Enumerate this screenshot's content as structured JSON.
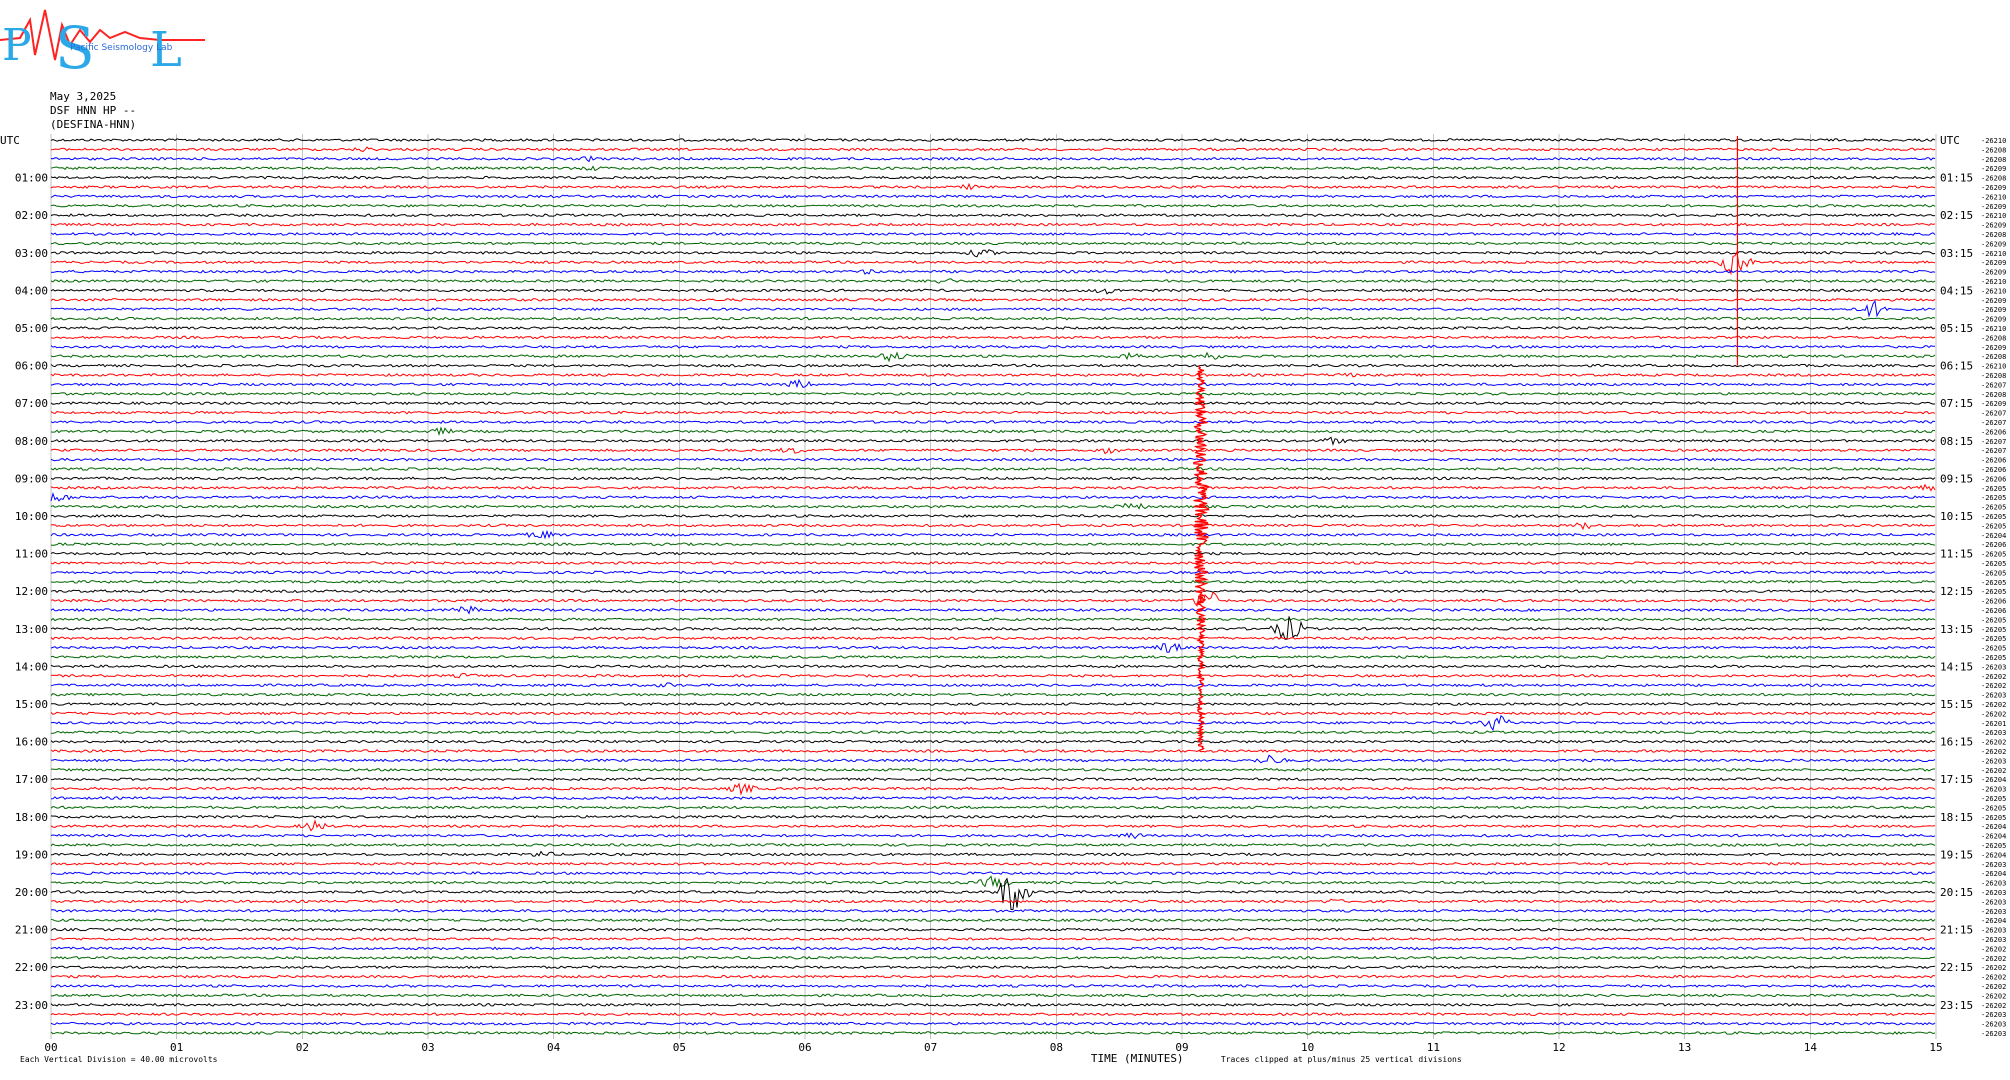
{
  "header": {
    "logo_text": "PSL",
    "logo_subtext": "Pacific Seismology Lab",
    "date": "May 3,2025",
    "station": "DSF HNN HP --",
    "station_full": "(DESFINA-HNN)"
  },
  "chart_data": {
    "type": "line",
    "subtype": "helicorder",
    "title": "May 3,2025 DSF HNN HP --",
    "xlabel": "TIME (MINUTES)",
    "xlim": [
      0,
      15
    ],
    "x_ticks": [
      "00",
      "01",
      "02",
      "03",
      "04",
      "05",
      "06",
      "07",
      "08",
      "09",
      "10",
      "11",
      "12",
      "13",
      "14",
      "15"
    ],
    "left_axis_label": "UTC",
    "right_axis_label": "UTC",
    "left_hour_labels": [
      "01:00",
      "02:00",
      "03:00",
      "04:00",
      "05:00",
      "06:00",
      "07:00",
      "08:00",
      "09:00",
      "10:00",
      "11:00",
      "12:00",
      "13:00",
      "14:00",
      "15:00",
      "16:00",
      "17:00",
      "18:00",
      "19:00",
      "20:00",
      "21:00",
      "22:00",
      "23:00"
    ],
    "right_hour_labels": [
      "01:15",
      "02:15",
      "03:15",
      "04:15",
      "05:15",
      "06:15",
      "07:15",
      "08:15",
      "09:15",
      "10:15",
      "11:15",
      "12:15",
      "13:15",
      "14:15",
      "15:15",
      "16:15",
      "17:15",
      "18:15",
      "19:15",
      "20:15",
      "21:15",
      "22:15",
      "23:15"
    ],
    "trace_minutes": 15,
    "trace_count": 96,
    "trace_colors": [
      "#000000",
      "#ff0000",
      "#0000ff",
      "#006600"
    ],
    "grid": "vertical",
    "right_trace_values": [
      "-26210",
      "-26208",
      "-26208",
      "-26209",
      "-26208",
      "-26209",
      "-26210",
      "-26209",
      "-26210",
      "-26209",
      "-26208",
      "-26209",
      "-26210",
      "-26209",
      "-26209",
      "-26210",
      "-26210",
      "-26209",
      "-26209",
      "-26209",
      "-26210",
      "-26208",
      "-26209",
      "-26208",
      "-26210",
      "-26208",
      "-26207",
      "-26208",
      "-26209",
      "-26207",
      "-26207",
      "-26206",
      "-26207",
      "-26207",
      "-26206",
      "-26206",
      "-26206",
      "-26205",
      "-26205",
      "-26205",
      "-26205",
      "-26205",
      "-26204",
      "-26206",
      "-26205",
      "-26205",
      "-26205",
      "-26205",
      "-26205",
      "-26206",
      "-26206",
      "-26205",
      "-26205",
      "-26205",
      "-26205",
      "-26205",
      "-26203",
      "-26202",
      "-26202",
      "-26203",
      "-26202",
      "-26202",
      "-26201",
      "-26203",
      "-26202",
      "-26202",
      "-26203",
      "-26202",
      "-26204",
      "-26203",
      "-26205",
      "-26205",
      "-26205",
      "-26204",
      "-26204",
      "-26205",
      "-26204",
      "-26203",
      "-26204",
      "-26203",
      "-26203",
      "-26203",
      "-26203",
      "-26204",
      "-26203",
      "-26203",
      "-26202",
      "-26202",
      "-26202",
      "-26202",
      "-26202",
      "-26202",
      "-26202",
      "-26203",
      "-26203",
      "-26203"
    ],
    "events": [
      {
        "trace": 1,
        "minute": 2.5,
        "amp": 3,
        "color": "#ff0000"
      },
      {
        "trace": 2,
        "minute": 4.3,
        "amp": 3,
        "color": "#0000ff"
      },
      {
        "trace": 3,
        "minute": 4.3,
        "amp": 3,
        "color": "#006600"
      },
      {
        "trace": 5,
        "minute": 7.3,
        "amp": 3,
        "color": "#ff0000"
      },
      {
        "trace": 12,
        "minute": 7.4,
        "amp": 5,
        "color": "#000000"
      },
      {
        "trace": 14,
        "minute": 6.5,
        "amp": 3,
        "color": "#0000ff"
      },
      {
        "trace": 15,
        "minute": 7.1,
        "amp": 4,
        "color": "#006600"
      },
      {
        "trace": 16,
        "minute": 8.4,
        "amp": 4,
        "color": "#000000"
      },
      {
        "trace": 13,
        "minute": 13.4,
        "amp": 14,
        "color": "#ff0000"
      },
      {
        "trace": 18,
        "minute": 14.5,
        "amp": 9,
        "color": "#0000ff"
      },
      {
        "trace": 23,
        "minute": 6.7,
        "amp": 6,
        "color": "#006600"
      },
      {
        "trace": 23,
        "minute": 8.6,
        "amp": 5,
        "color": "#006600"
      },
      {
        "trace": 23,
        "minute": 9.2,
        "amp": 5,
        "color": "#006600"
      },
      {
        "trace": 26,
        "minute": 5.95,
        "amp": 5,
        "color": "#0000ff"
      },
      {
        "trace": 25,
        "minute": 10.3,
        "amp": 3,
        "color": "#ff0000"
      },
      {
        "trace": 31,
        "minute": 3.1,
        "amp": 4,
        "color": "#006600"
      },
      {
        "trace": 32,
        "minute": 10.2,
        "amp": 4,
        "color": "#000000"
      },
      {
        "trace": 33,
        "minute": 5.9,
        "amp": 4,
        "color": "#ff0000"
      },
      {
        "trace": 33,
        "minute": 8.4,
        "amp": 4,
        "color": "#ff0000"
      },
      {
        "trace": 37,
        "minute": 14.9,
        "amp": 5,
        "color": "#ff0000"
      },
      {
        "trace": 38,
        "minute": 0.05,
        "amp": 6,
        "color": "#0000ff"
      },
      {
        "trace": 39,
        "minute": 8.6,
        "amp": 5,
        "color": "#006600"
      },
      {
        "trace": 41,
        "minute": 12.2,
        "amp": 4,
        "color": "#ff0000"
      },
      {
        "trace": 42,
        "minute": 3.9,
        "amp": 5,
        "color": "#0000ff"
      },
      {
        "trace": 49,
        "minute": 9.2,
        "amp": 12,
        "color": "#ff0000"
      },
      {
        "trace": 50,
        "minute": 3.3,
        "amp": 5,
        "color": "#0000ff"
      },
      {
        "trace": 52,
        "minute": 9.85,
        "amp": 14,
        "color": "#000000"
      },
      {
        "trace": 54,
        "minute": 8.9,
        "amp": 6,
        "color": "#0000ff"
      },
      {
        "trace": 57,
        "minute": 3.3,
        "amp": 3,
        "color": "#ff0000"
      },
      {
        "trace": 58,
        "minute": 4.9,
        "amp": 3,
        "color": "#0000ff"
      },
      {
        "trace": 62,
        "minute": 11.5,
        "amp": 9,
        "color": "#0000ff"
      },
      {
        "trace": 66,
        "minute": 9.7,
        "amp": 6,
        "color": "#0000ff"
      },
      {
        "trace": 69,
        "minute": 5.5,
        "amp": 6,
        "color": "#ff0000"
      },
      {
        "trace": 73,
        "minute": 2.1,
        "amp": 6,
        "color": "#ff0000"
      },
      {
        "trace": 74,
        "minute": 8.6,
        "amp": 4,
        "color": "#0000ff"
      },
      {
        "trace": 76,
        "minute": 3.9,
        "amp": 4,
        "color": "#000000"
      },
      {
        "trace": 79,
        "minute": 7.5,
        "amp": 7,
        "color": "#006600"
      },
      {
        "trace": 80,
        "minute": 7.65,
        "amp": 22,
        "color": "#000000"
      },
      {
        "trace": 81,
        "minute": 10.2,
        "amp": 3,
        "color": "#ff0000"
      }
    ],
    "big_event": {
      "minute": 9.15,
      "trace_start": 24,
      "trace_end": 65,
      "color": "#ff0000"
    },
    "footer_left": "Each Vertical Division =   40.00 microvolts",
    "footer_right": "Traces clipped at plus/minus 25 vertical divisions"
  }
}
